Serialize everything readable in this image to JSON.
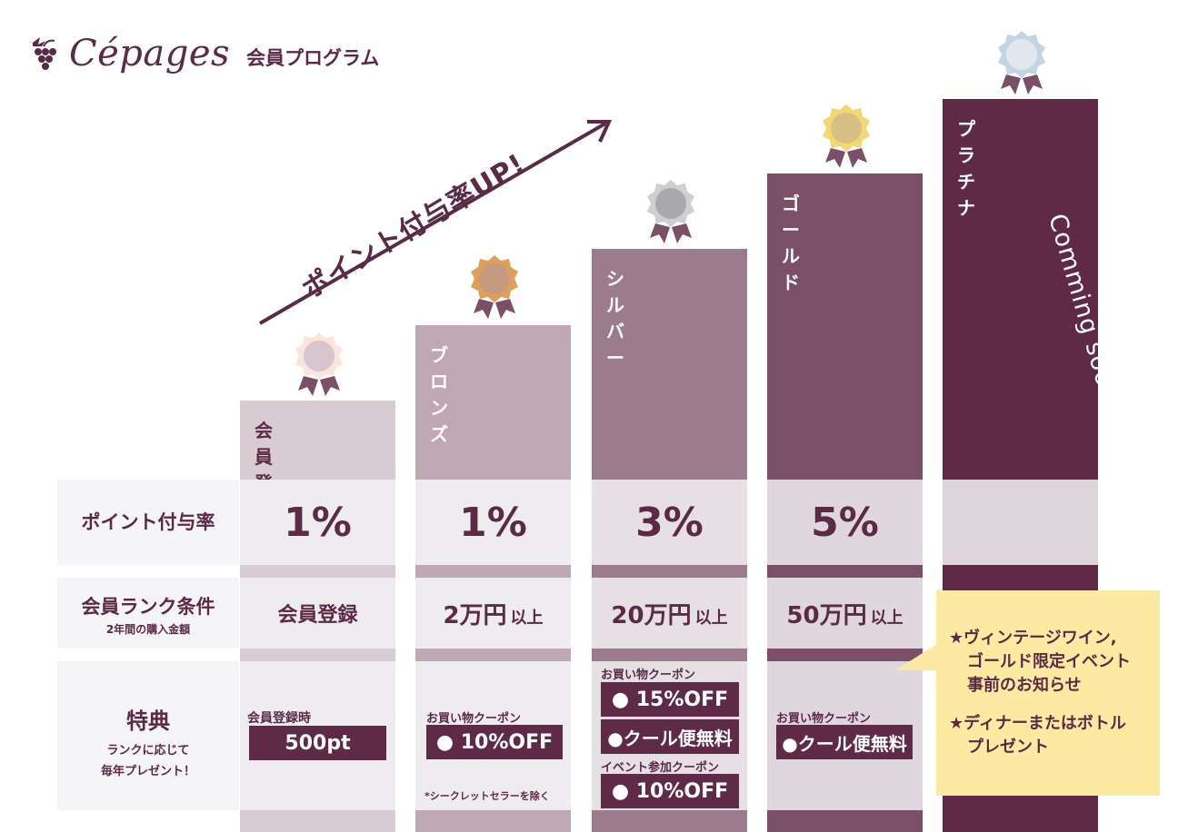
{
  "header": {
    "brand": "Cépages",
    "program": "会員プログラム"
  },
  "headline": "ポイント付与率UP!",
  "ranks": [
    {
      "id": "member",
      "label": "会員登録",
      "medal": "pink"
    },
    {
      "id": "bronze",
      "label": "ブロンズ",
      "medal": "bronze"
    },
    {
      "id": "silver",
      "label": "シルバー",
      "medal": "silver"
    },
    {
      "id": "gold",
      "label": "ゴールド",
      "medal": "gold"
    },
    {
      "id": "platinum",
      "label": "プラチナ",
      "medal": "platinum",
      "note": "Comming soon..."
    }
  ],
  "rows": {
    "rate": {
      "label": "ポイント付与率",
      "values": [
        "1%",
        "1%",
        "3%",
        "5%",
        ""
      ]
    },
    "condition": {
      "label": "会員ランク条件",
      "sublabel": "2年間の購入金額",
      "values": [
        {
          "main": "会員登録",
          "suffix": ""
        },
        {
          "main": "2万円",
          "suffix": "以上"
        },
        {
          "main": "20万円",
          "suffix": "以上"
        },
        {
          "main": "50万円",
          "suffix": "以上"
        }
      ]
    },
    "perks": {
      "label": "特典",
      "sublabel_1": "ランクに応じて",
      "sublabel_2": "毎年プレゼント！",
      "member": {
        "caption": "会員登録時",
        "box": "500pt"
      },
      "bronze": {
        "caption": "お買い物クーポン",
        "box": "● 10%OFF",
        "note": "*シークレットセラーを除く"
      },
      "silver": {
        "caption_1": "お買い物クーポン",
        "box_1": "● 15%OFF",
        "box_2": "●クール便無料",
        "caption_2": "イベント参加クーポン",
        "box_3": "● 10%OFF"
      },
      "gold": {
        "caption": "お買い物クーポン",
        "box": "●クール便無料"
      }
    }
  },
  "callout": {
    "line_1": "★ヴィンテージワイン,",
    "line_2": "ゴールド限定イベント",
    "line_3": "事前のお知らせ",
    "line_4": "★ディナーまたはボトル",
    "line_5": "プレゼント"
  },
  "colors": {
    "member": "#d9cbd2",
    "bronze": "#bfa7b4",
    "silver": "#9b7b8d",
    "gold": "#7c4f69",
    "platinum": "#5e2a47",
    "accent": "#5a2a46",
    "callout": "#fdeaa2"
  },
  "icons": [
    "grape-icon",
    "arrow-icon",
    "medal-icon"
  ]
}
